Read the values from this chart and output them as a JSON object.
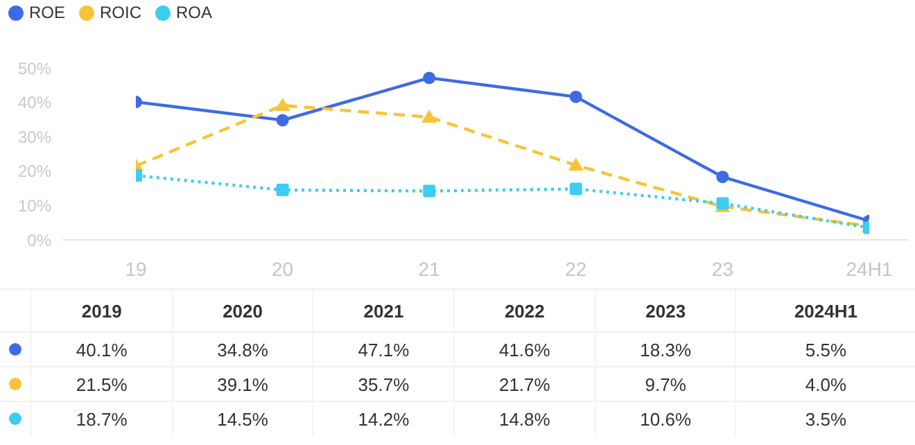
{
  "chart_data": {
    "type": "line",
    "categories": [
      "19",
      "20",
      "21",
      "22",
      "23",
      "24H1"
    ],
    "series": [
      {
        "name": "ROE",
        "color": "#3d6be6",
        "marker": "circle",
        "line_style": "solid",
        "values": [
          40.1,
          34.8,
          47.1,
          41.6,
          18.3,
          5.5
        ],
        "value_labels": [
          "40.1%",
          "34.8%",
          "47.1%",
          "41.6%",
          "18.3%",
          "5.5%"
        ]
      },
      {
        "name": "ROIC",
        "color": "#f8c337",
        "marker": "triangle",
        "line_style": "dashed",
        "values": [
          21.5,
          39.1,
          35.7,
          21.7,
          9.7,
          4.0
        ],
        "value_labels": [
          "21.5%",
          "39.1%",
          "35.7%",
          "21.7%",
          "9.7%",
          "4.0%"
        ]
      },
      {
        "name": "ROA",
        "color": "#3ccdf0",
        "marker": "square",
        "line_style": "dotted",
        "values": [
          18.7,
          14.5,
          14.2,
          14.8,
          10.6,
          3.5
        ],
        "value_labels": [
          "18.7%",
          "14.5%",
          "14.2%",
          "14.8%",
          "10.6%",
          "3.5%"
        ]
      }
    ],
    "annotations": [
      "2019",
      "2020",
      "2021",
      "2022",
      "2023",
      "2024H1"
    ],
    "ylim": [
      0,
      50
    ],
    "yticks": [
      {
        "value": 0,
        "label": "0%"
      },
      {
        "value": 10,
        "label": "10%"
      },
      {
        "value": 20,
        "label": "20%"
      },
      {
        "value": 30,
        "label": "30%"
      },
      {
        "value": 40,
        "label": "40%"
      },
      {
        "value": 50,
        "label": "50%"
      }
    ],
    "grid": false,
    "legend": "top left"
  }
}
